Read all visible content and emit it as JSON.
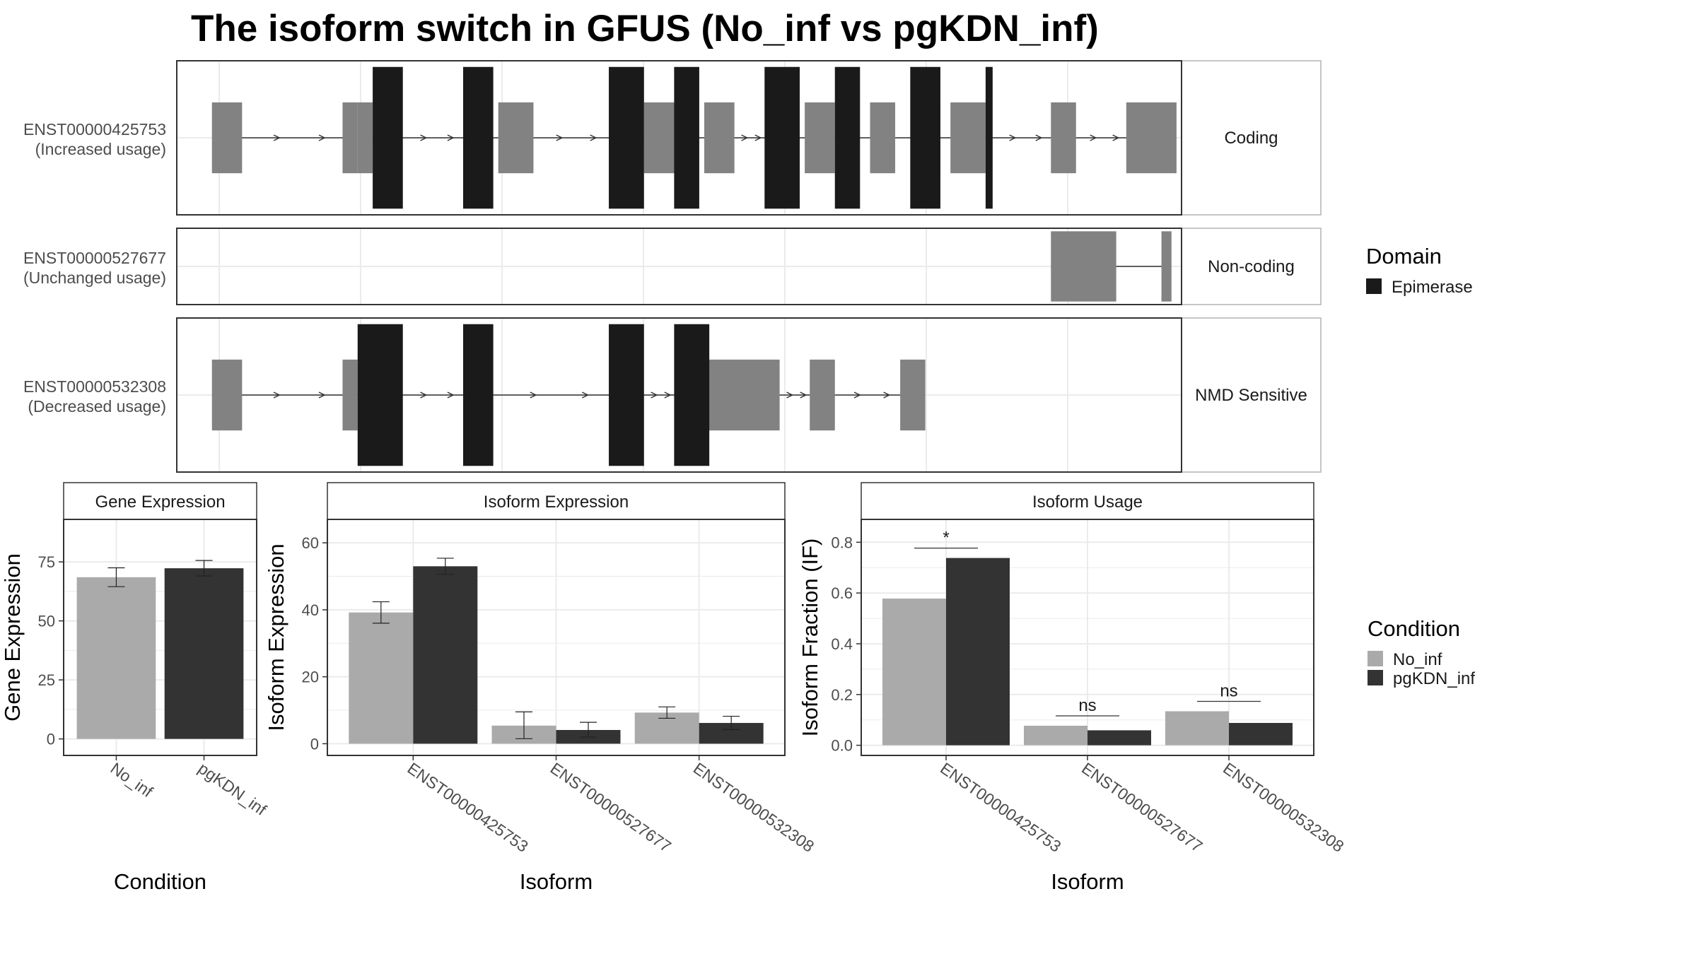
{
  "title": "The isoform switch in GFUS (No_inf vs pgKDN_inf)",
  "colors": {
    "domain_fill": "#1a1a1a",
    "exon_fill": "#828282",
    "no_inf": "#aaaaaa",
    "pgkdn_inf": "#333333",
    "panel_border": "#333333",
    "grid": "#ebebeb",
    "strip_border": "#b3b3b3"
  },
  "chart_data": [
    {
      "type": "gene-structure",
      "x_range": [
        0,
        100
      ],
      "legend": {
        "title": "Domain",
        "items": [
          {
            "label": "Epimerase",
            "color": "#1a1a1a"
          }
        ]
      },
      "rows": [
        {
          "id": "ENST00000425753",
          "usage": "(Increased usage)",
          "category": "Coding",
          "exons": [
            {
              "s": 3.5,
              "e": 6.5,
              "kind": "utr"
            },
            {
              "s": 16.5,
              "e": 18.0,
              "kind": "utr"
            },
            {
              "s": 18.0,
              "e": 19.5,
              "kind": "cds"
            },
            {
              "s": 32.0,
              "e": 35.5,
              "kind": "cds"
            },
            {
              "s": 46.5,
              "e": 50.0,
              "kind": "cds"
            },
            {
              "s": 52.5,
              "e": 55.5,
              "kind": "cds"
            },
            {
              "s": 62.5,
              "e": 65.5,
              "kind": "cds"
            },
            {
              "s": 69.0,
              "e": 71.5,
              "kind": "cds"
            },
            {
              "s": 74.5,
              "e": 76.0,
              "kind": "cds"
            },
            {
              "s": 77.0,
              "e": 80.5,
              "kind": "utr"
            },
            {
              "s": 87.0,
              "e": 89.5,
              "kind": "utr"
            },
            {
              "s": 94.5,
              "e": 99.5,
              "kind": "utr"
            }
          ],
          "domains": [
            {
              "s": 19.5,
              "e": 22.5
            },
            {
              "s": 28.5,
              "e": 31.5
            },
            {
              "s": 43.0,
              "e": 46.5
            },
            {
              "s": 49.5,
              "e": 52.0
            },
            {
              "s": 58.5,
              "e": 62.0
            },
            {
              "s": 65.5,
              "e": 68.0
            },
            {
              "s": 73.0,
              "e": 76.0
            },
            {
              "s": 80.5,
              "e": 81.2
            }
          ]
        },
        {
          "id": "ENST00000527677",
          "usage": "(Unchanged usage)",
          "category": "Non-coding",
          "exons": [
            {
              "s": 87.0,
              "e": 93.5,
              "kind": "nc"
            },
            {
              "s": 98.0,
              "e": 99.0,
              "kind": "nc"
            }
          ],
          "domains": []
        },
        {
          "id": "ENST00000532308",
          "usage": "(Decreased usage)",
          "category": "NMD Sensitive",
          "exons": [
            {
              "s": 3.5,
              "e": 6.5,
              "kind": "utr"
            },
            {
              "s": 16.5,
              "e": 18.0,
              "kind": "utr"
            },
            {
              "s": 52.0,
              "e": 60.0,
              "kind": "utr"
            },
            {
              "s": 63.0,
              "e": 65.5,
              "kind": "utr"
            },
            {
              "s": 72.0,
              "e": 74.5,
              "kind": "utr"
            }
          ],
          "domains": [
            {
              "s": 18.0,
              "e": 22.5
            },
            {
              "s": 28.5,
              "e": 31.5
            },
            {
              "s": 43.0,
              "e": 46.5
            },
            {
              "s": 49.5,
              "e": 53.0
            }
          ]
        }
      ]
    },
    {
      "type": "bar",
      "panel": "Gene Expression",
      "xlabel": "Condition",
      "ylabel": "Gene Expression",
      "categories": [
        "No_inf",
        "pgKDN_inf"
      ],
      "values": [
        68.5,
        72.3
      ],
      "errors": [
        [
          64.5,
          72.5
        ],
        [
          69.0,
          75.6
        ]
      ],
      "ylim": [
        -7,
        93
      ],
      "yticks": [
        0,
        25,
        50,
        75
      ]
    },
    {
      "type": "bar",
      "panel": "Isoform Expression",
      "xlabel": "Isoform",
      "ylabel": "Isoform Expression",
      "categories": [
        "ENST00000425753",
        "ENST00000527677",
        "ENST00000532308"
      ],
      "series": [
        {
          "name": "No_inf",
          "values": [
            39.2,
            5.4,
            9.3
          ],
          "errors": [
            [
              36.0,
              42.4
            ],
            [
              1.5,
              9.5
            ],
            [
              7.6,
              11.0
            ]
          ]
        },
        {
          "name": "pgKDN_inf",
          "values": [
            53.0,
            4.1,
            6.2
          ],
          "errors": [
            [
              50.6,
              55.4
            ],
            [
              2.0,
              6.4
            ],
            [
              4.2,
              8.2
            ]
          ]
        }
      ],
      "ylim": [
        -3.5,
        67
      ],
      "yticks": [
        0,
        20,
        40,
        60
      ]
    },
    {
      "type": "bar",
      "panel": "Isoform Usage",
      "xlabel": "Isoform",
      "ylabel": "Isoform Fraction (IF)",
      "categories": [
        "ENST00000425753",
        "ENST00000527677",
        "ENST00000532308"
      ],
      "series": [
        {
          "name": "No_inf",
          "values": [
            0.578,
            0.077,
            0.134
          ]
        },
        {
          "name": "pgKDN_inf",
          "values": [
            0.738,
            0.059,
            0.088
          ]
        }
      ],
      "significance": [
        "*",
        "ns",
        "ns"
      ],
      "ylim": [
        -0.04,
        0.89
      ],
      "yticks": [
        0.0,
        0.2,
        0.4,
        0.6,
        0.8
      ]
    }
  ],
  "legend_condition": {
    "title": "Condition",
    "items": [
      {
        "label": "No_inf",
        "color": "#aaaaaa"
      },
      {
        "label": "pgKDN_inf",
        "color": "#333333"
      }
    ]
  }
}
